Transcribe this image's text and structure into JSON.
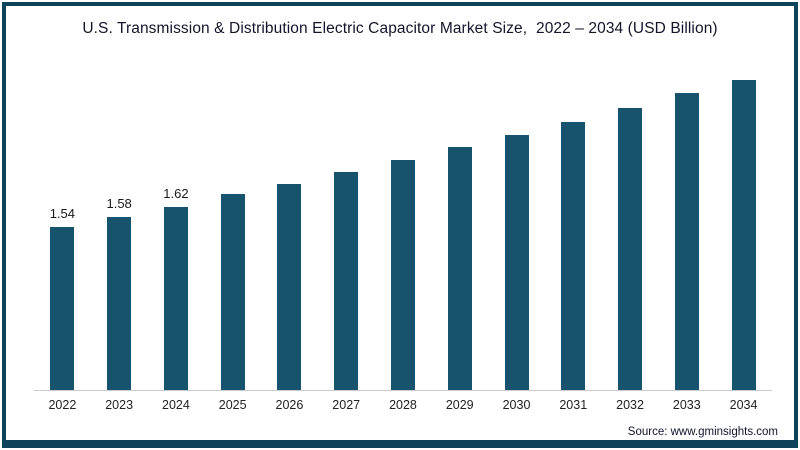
{
  "title": "U.S. Transmission & Distribution Electric Capacitor Market Size,  2022 – 2034 (USD Billion)",
  "source": "Source: www.gminsights.com",
  "colors": {
    "bar": "#17536d",
    "frame_border": "#0d4459",
    "axis_line": "#cccccc",
    "title_text": "#14142b",
    "label_text": "#1a1a1a"
  },
  "chart_data": {
    "type": "bar",
    "title": "U.S. Transmission & Distribution Electric Capacitor Market Size, 2022 – 2034 (USD Billion)",
    "categories": [
      "2022",
      "2023",
      "2024",
      "2025",
      "2026",
      "2027",
      "2028",
      "2029",
      "2030",
      "2031",
      "2032",
      "2033",
      "2034"
    ],
    "values": [
      1.54,
      1.58,
      1.62,
      1.67,
      1.71,
      1.76,
      1.81,
      1.86,
      1.91,
      1.96,
      2.02,
      2.08,
      2.13
    ],
    "data_labels": [
      "1.54",
      "1.58",
      "1.62",
      "",
      "",
      "",
      "",
      "",
      "",
      "",
      "",
      "",
      ""
    ],
    "xlabel": "",
    "ylabel": "",
    "ylim": [
      0.88,
      2.18
    ],
    "y_axis_visible": false,
    "grid": false,
    "legend": false,
    "bar_color": "#17536d",
    "annotation": "Source: www.gminsights.com"
  }
}
